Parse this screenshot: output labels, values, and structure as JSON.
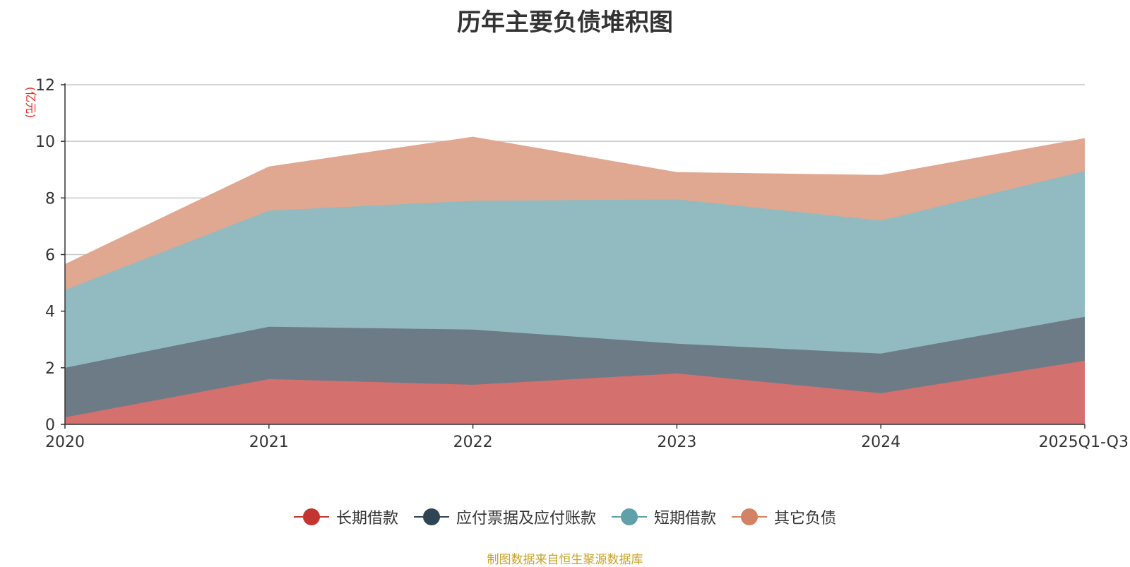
{
  "chart_data": {
    "type": "area",
    "stacked": true,
    "title": "历年主要负债堆积图",
    "ylabel": "(亿元)",
    "categories": [
      "2020",
      "2021",
      "2022",
      "2023",
      "2024",
      "2025Q1-Q3"
    ],
    "ylim": [
      0,
      12
    ],
    "yticks": [
      0,
      2,
      4,
      6,
      8,
      10,
      12
    ],
    "grid": true,
    "legend_position": "bottom",
    "series": [
      {
        "name": "长期借款",
        "values": [
          0.25,
          1.6,
          1.4,
          1.8,
          1.1,
          2.25
        ],
        "color": "#c23531",
        "fill": "#d4706e"
      },
      {
        "name": "应付票据及应付账款",
        "values": [
          1.75,
          1.85,
          1.95,
          1.05,
          1.4,
          1.55
        ],
        "color": "#2f4554",
        "fill": "#6d7b86"
      },
      {
        "name": "短期借款",
        "values": [
          2.75,
          4.1,
          4.55,
          5.1,
          4.7,
          5.15
        ],
        "color": "#61a0a8",
        "fill": "#91bbc1"
      },
      {
        "name": "其它负债",
        "values": [
          0.9,
          1.55,
          2.25,
          0.95,
          1.6,
          1.15
        ],
        "color": "#d48265",
        "fill": "#e0a791"
      }
    ]
  },
  "source_note": "制图数据来自恒生聚源数据库"
}
